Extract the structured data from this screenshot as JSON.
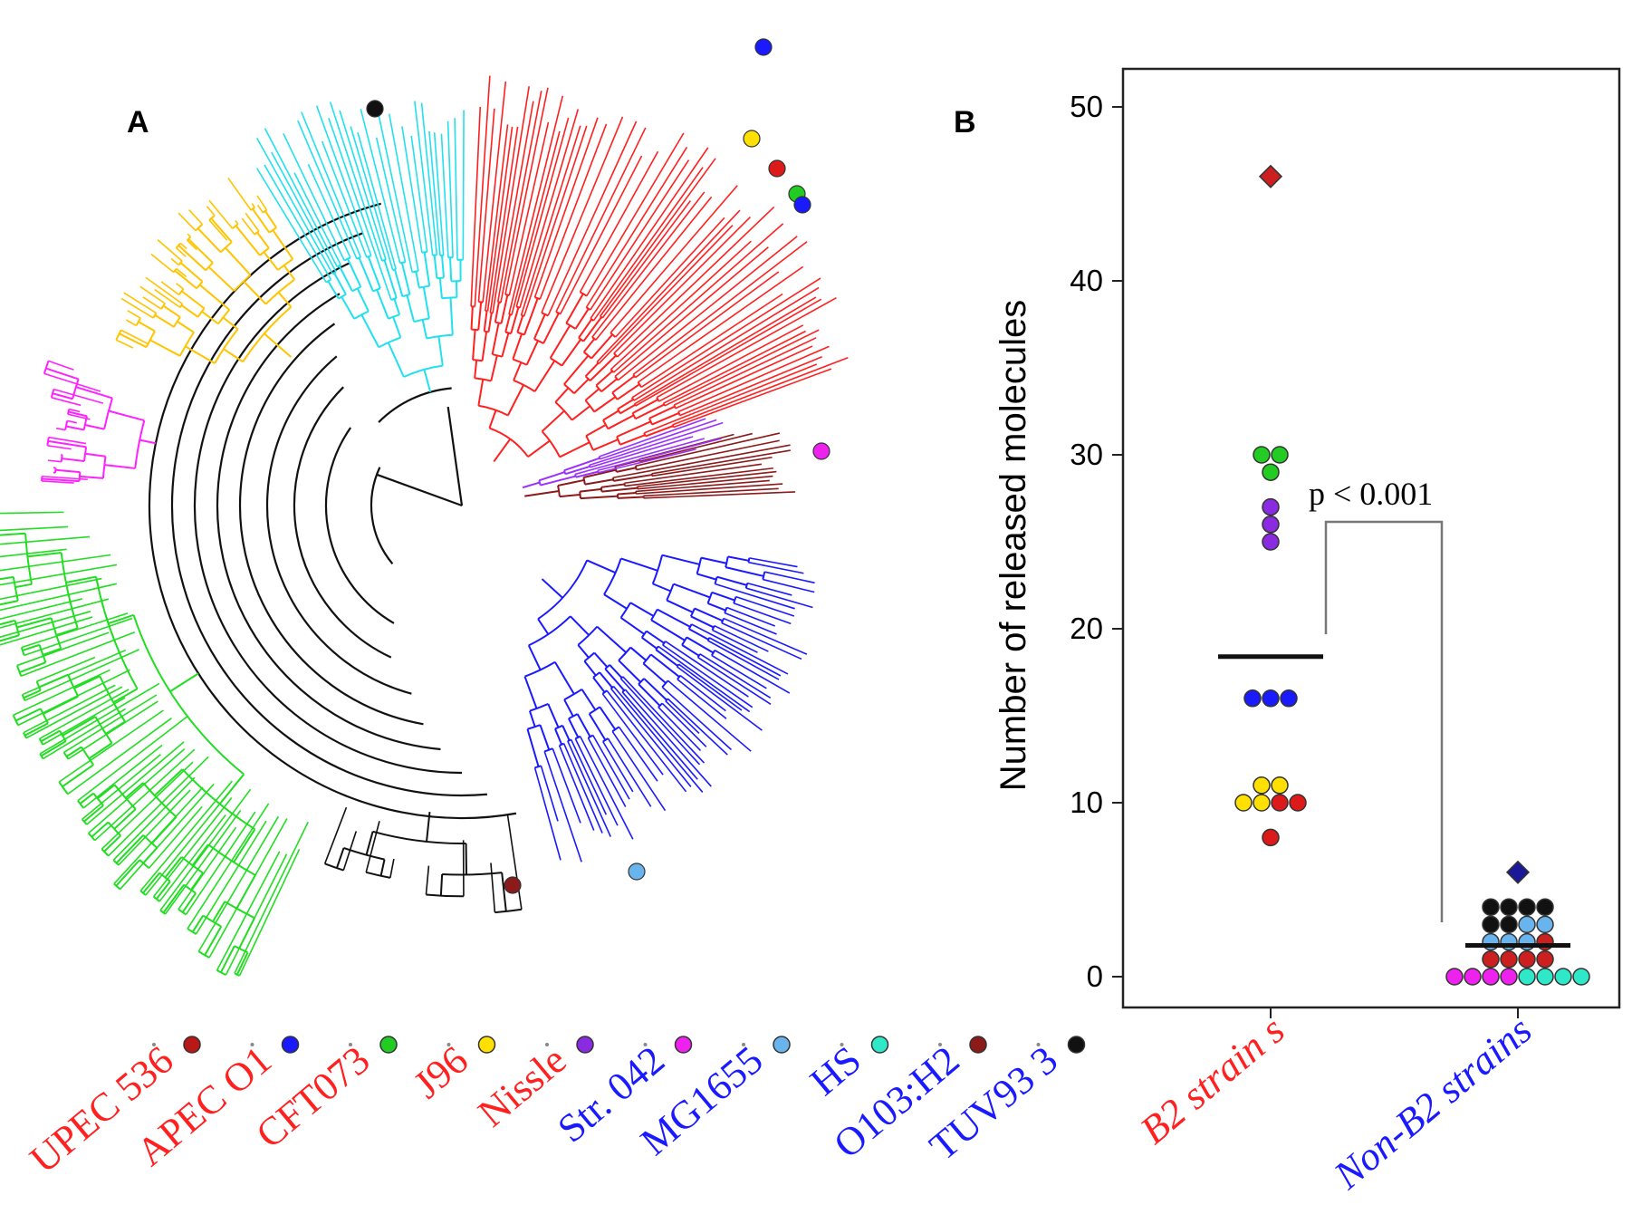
{
  "panels": {
    "a_label": "A",
    "b_label": "B"
  },
  "colors": {
    "red": "#ff2020",
    "blue": "#1a1aff",
    "cyan": "#22e0f0",
    "gold": "#ffc400",
    "magenta": "#ff22ff",
    "green": "#22dd22",
    "black": "#111111",
    "purple": "#9a30ff",
    "brown": "#8b1a1a",
    "grey": "#666666"
  },
  "strains": [
    {
      "name": "UPEC  536",
      "label_color": "#ff2020",
      "marker_color": "#b81818",
      "icon": "dark-red-circle"
    },
    {
      "name": "APEC O1",
      "label_color": "#ff2020",
      "marker_color": "#1a1aff",
      "icon": "blue-circle"
    },
    {
      "name": "CFT073",
      "label_color": "#ff2020",
      "marker_color": "#22cc22",
      "icon": "green-circle"
    },
    {
      "name": "J96",
      "label_color": "#ff2020",
      "marker_color": "#ffe000",
      "icon": "yellow-circle"
    },
    {
      "name": "Nissle",
      "label_color": "#ff2020",
      "marker_color": "#8a2be2",
      "icon": "purple-circle"
    },
    {
      "name": "Str. 042",
      "label_color": "#1a1aff",
      "marker_color": "#ee22ee",
      "icon": "magenta-circle"
    },
    {
      "name": "MG1655",
      "label_color": "#1a1aff",
      "marker_color": "#6ab4ee",
      "icon": "light-blue-circle"
    },
    {
      "name": "HS",
      "label_color": "#1a1aff",
      "marker_color": "#2ee8c8",
      "icon": "teal-circle"
    },
    {
      "name": "O103:H2",
      "label_color": "#1a1aff",
      "marker_color": "#8b1a1a",
      "icon": "maroon-circle"
    },
    {
      "name": "TUV93 3",
      "label_color": "#1a1aff",
      "marker_color": "#111111",
      "icon": "black-circle"
    }
  ],
  "chart_data": [
    {
      "type": "tree",
      "title": "A",
      "clades": [
        {
          "color": "#ff2020",
          "description": "B2 clade top-right"
        },
        {
          "color": "#1a1aff",
          "description": "clade right-bottom"
        },
        {
          "color": "#22e0f0",
          "description": "clade top"
        },
        {
          "color": "#ffc400",
          "description": "clade left-top"
        },
        {
          "color": "#ff22ff",
          "description": "clade left"
        },
        {
          "color": "#22dd22",
          "description": "clade bottom-left"
        },
        {
          "color": "#9a30ff",
          "description": "clade middle-right"
        },
        {
          "color": "#8b1a1a",
          "description": "clade middle-right"
        }
      ]
    },
    {
      "type": "scatter",
      "title": "B",
      "ylabel": "Number of released molecules",
      "xlabel": "",
      "ylim": [
        0,
        52
      ],
      "yticks": [
        0,
        10,
        20,
        30,
        40,
        50
      ],
      "categories": [
        {
          "name": "B2 strain s",
          "color": "#ff2020"
        },
        {
          "name": "Non-B2 strains",
          "color": "#1a1aff"
        }
      ],
      "points": [
        {
          "group": 0,
          "y": 46,
          "color": "#cc2020",
          "shape": "diamond"
        },
        {
          "group": 0,
          "y": 30,
          "color": "#22cc22",
          "shape": "circle"
        },
        {
          "group": 0,
          "y": 30,
          "color": "#22cc22",
          "shape": "circle"
        },
        {
          "group": 0,
          "y": 29,
          "color": "#22cc22",
          "shape": "circle"
        },
        {
          "group": 0,
          "y": 27,
          "color": "#8a2be2",
          "shape": "circle"
        },
        {
          "group": 0,
          "y": 26,
          "color": "#8a2be2",
          "shape": "circle"
        },
        {
          "group": 0,
          "y": 25,
          "color": "#8a2be2",
          "shape": "circle"
        },
        {
          "group": 0,
          "y": 16,
          "color": "#1a1aff",
          "shape": "circle"
        },
        {
          "group": 0,
          "y": 16,
          "color": "#1a1aff",
          "shape": "circle"
        },
        {
          "group": 0,
          "y": 16,
          "color": "#1a1aff",
          "shape": "circle"
        },
        {
          "group": 0,
          "y": 11,
          "color": "#ffe000",
          "shape": "circle"
        },
        {
          "group": 0,
          "y": 11,
          "color": "#ffe000",
          "shape": "circle"
        },
        {
          "group": 0,
          "y": 10,
          "color": "#ffe000",
          "shape": "circle"
        },
        {
          "group": 0,
          "y": 10,
          "color": "#ffe000",
          "shape": "circle"
        },
        {
          "group": 0,
          "y": 10,
          "color": "#dd1a1a",
          "shape": "circle"
        },
        {
          "group": 0,
          "y": 10,
          "color": "#dd1a1a",
          "shape": "circle"
        },
        {
          "group": 0,
          "y": 8,
          "color": "#dd1a1a",
          "shape": "circle"
        },
        {
          "group": 1,
          "y": 6,
          "color": "#1a1a99",
          "shape": "diamond"
        },
        {
          "group": 1,
          "y": 4,
          "color": "#111111",
          "shape": "circle"
        },
        {
          "group": 1,
          "y": 4,
          "color": "#111111",
          "shape": "circle"
        },
        {
          "group": 1,
          "y": 4,
          "color": "#111111",
          "shape": "circle"
        },
        {
          "group": 1,
          "y": 4,
          "color": "#111111",
          "shape": "circle"
        },
        {
          "group": 1,
          "y": 3,
          "color": "#111111",
          "shape": "circle"
        },
        {
          "group": 1,
          "y": 3,
          "color": "#111111",
          "shape": "circle"
        },
        {
          "group": 1,
          "y": 3,
          "color": "#6ab4ee",
          "shape": "circle"
        },
        {
          "group": 1,
          "y": 3,
          "color": "#6ab4ee",
          "shape": "circle"
        },
        {
          "group": 1,
          "y": 2,
          "color": "#6ab4ee",
          "shape": "circle"
        },
        {
          "group": 1,
          "y": 2,
          "color": "#6ab4ee",
          "shape": "circle"
        },
        {
          "group": 1,
          "y": 2,
          "color": "#6ab4ee",
          "shape": "circle"
        },
        {
          "group": 1,
          "y": 2,
          "color": "#cc2020",
          "shape": "circle"
        },
        {
          "group": 1,
          "y": 1,
          "color": "#cc2020",
          "shape": "circle"
        },
        {
          "group": 1,
          "y": 1,
          "color": "#cc2020",
          "shape": "circle"
        },
        {
          "group": 1,
          "y": 1,
          "color": "#cc2020",
          "shape": "circle"
        },
        {
          "group": 1,
          "y": 1,
          "color": "#cc2020",
          "shape": "circle"
        },
        {
          "group": 1,
          "y": 0,
          "color": "#ee22ee",
          "shape": "circle"
        },
        {
          "group": 1,
          "y": 0,
          "color": "#ee22ee",
          "shape": "circle"
        },
        {
          "group": 1,
          "y": 0,
          "color": "#ee22ee",
          "shape": "circle"
        },
        {
          "group": 1,
          "y": 0,
          "color": "#ee22ee",
          "shape": "circle"
        },
        {
          "group": 1,
          "y": 0,
          "color": "#2ee8c8",
          "shape": "circle"
        },
        {
          "group": 1,
          "y": 0,
          "color": "#2ee8c8",
          "shape": "circle"
        },
        {
          "group": 1,
          "y": 0,
          "color": "#2ee8c8",
          "shape": "circle"
        },
        {
          "group": 1,
          "y": 0,
          "color": "#2ee8c8",
          "shape": "circle"
        }
      ],
      "medians": [
        {
          "group": 0,
          "y": 18.4
        },
        {
          "group": 1,
          "y": 1.8
        }
      ],
      "annotation": "p < 0.001"
    }
  ]
}
